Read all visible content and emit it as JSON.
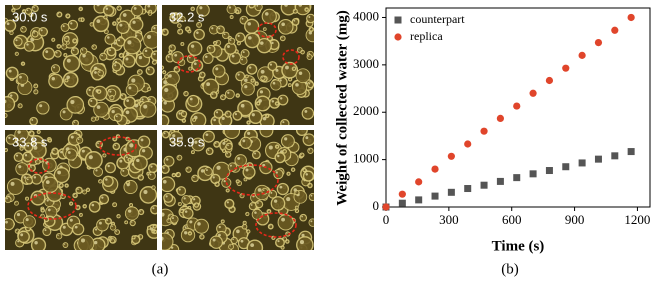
{
  "micrographs": {
    "labels": [
      "30.0 s",
      "32.2 s",
      "33.8 s",
      "35.9 s"
    ],
    "caption": "(a)"
  },
  "chart_data": {
    "type": "scatter",
    "caption": "(b)",
    "x_label": "Time (s)",
    "y_label": "Weight of collected water (mg)",
    "x": [
      0,
      78,
      156,
      234,
      312,
      390,
      468,
      546,
      624,
      702,
      780,
      858,
      936,
      1014,
      1092,
      1170
    ],
    "series": [
      {
        "name": "counterpart",
        "color": "#555555",
        "marker": "square",
        "values": [
          0,
          80,
          150,
          230,
          310,
          390,
          460,
          540,
          620,
          700,
          770,
          850,
          930,
          1010,
          1080,
          1170
        ]
      },
      {
        "name": "replica",
        "color": "#e0452b",
        "marker": "circle",
        "values": [
          0,
          270,
          530,
          800,
          1070,
          1330,
          1600,
          1870,
          2130,
          2400,
          2670,
          2930,
          3200,
          3470,
          3730,
          4000
        ]
      }
    ],
    "xlim": [
      0,
      1260
    ],
    "xticks": [
      0,
      300,
      600,
      900,
      1200
    ],
    "ylim": [
      0,
      4200
    ],
    "yticks": [
      0,
      1000,
      2000,
      3000,
      4000
    ],
    "legend": "upper-left"
  }
}
